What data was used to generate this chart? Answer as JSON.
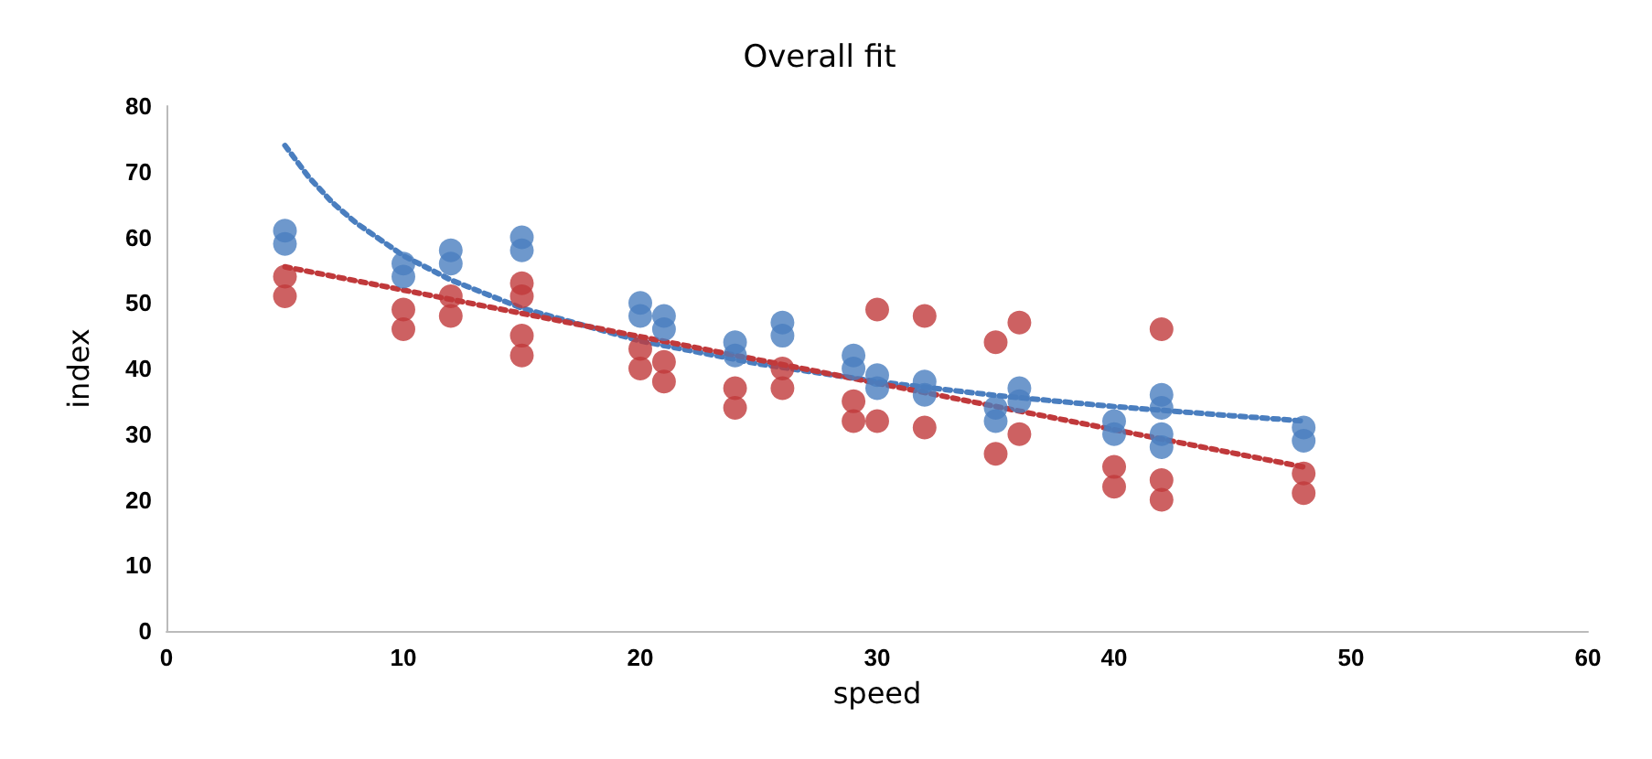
{
  "chart_data": {
    "type": "scatter",
    "title": "Overall fit",
    "xlabel": "speed",
    "ylabel": "index",
    "xlim": [
      0,
      60
    ],
    "xticks": [
      0,
      10,
      20,
      30,
      40,
      50,
      60
    ],
    "ylim": [
      0,
      80
    ],
    "yticks": [
      0,
      10,
      20,
      30,
      40,
      50,
      60,
      70,
      80
    ],
    "grid": false,
    "marker": "circle",
    "series": [
      {
        "color": "#4a7ebf",
        "x": [
          5,
          5,
          10,
          10,
          12,
          12,
          15,
          15,
          20,
          20,
          21,
          21,
          24,
          24,
          26,
          26,
          29,
          29,
          30,
          30,
          32,
          32,
          35,
          35,
          36,
          36,
          40,
          40,
          42,
          42,
          42,
          42,
          48,
          48
        ],
        "values": [
          61,
          59,
          56,
          54,
          58,
          56,
          60,
          58,
          50,
          48,
          48,
          46,
          44,
          42,
          47,
          45,
          42,
          40,
          39,
          37,
          38,
          36,
          34,
          32,
          37,
          35,
          32,
          30,
          36,
          34,
          30,
          28,
          31,
          29
        ]
      },
      {
        "color": "#c0393b",
        "x": [
          5,
          5,
          10,
          10,
          12,
          12,
          15,
          15,
          15,
          15,
          20,
          20,
          21,
          21,
          24,
          24,
          26,
          26,
          29,
          29,
          30,
          30,
          32,
          32,
          35,
          35,
          36,
          36,
          40,
          40,
          42,
          42,
          42,
          48,
          48
        ],
        "values": [
          54,
          51,
          49,
          46,
          51,
          48,
          53,
          51,
          45,
          42,
          43,
          40,
          41,
          38,
          37,
          34,
          40,
          37,
          35,
          32,
          49,
          32,
          48,
          31,
          44,
          27,
          47,
          30,
          25,
          22,
          46,
          23,
          20,
          24,
          21
        ]
      },
      {
        "type": "line",
        "line_style": "dotted",
        "marker": "none",
        "color": "#4a7ebf",
        "x": [
          5,
          6,
          7,
          8,
          10,
          12,
          15,
          20,
          25,
          30,
          35,
          40,
          45,
          48
        ],
        "values": [
          74,
          69.2,
          65.3,
          62.2,
          57.2,
          53.5,
          49.2,
          44.2,
          40.7,
          38,
          35.9,
          34.2,
          32.8,
          32
        ]
      },
      {
        "type": "line",
        "line_style": "dotted",
        "marker": "none",
        "color": "#c0393b",
        "x": [
          5,
          48
        ],
        "values": [
          55.5,
          25
        ]
      }
    ]
  }
}
